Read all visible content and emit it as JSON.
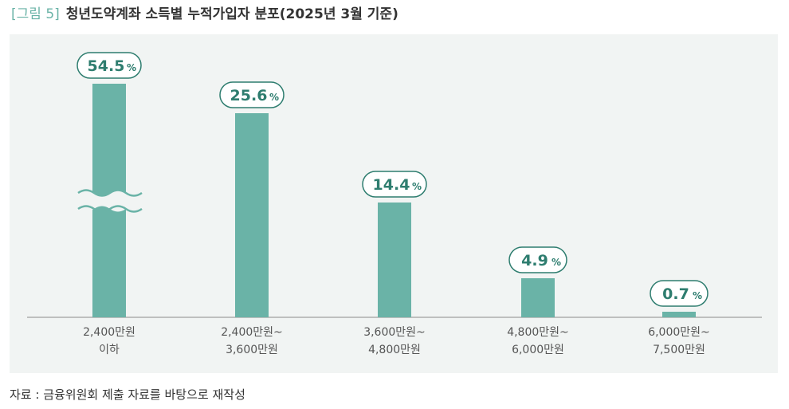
{
  "figure": {
    "label": "[그림 5]",
    "title": "청년도약계좌 소득별 누적가입자 분포(2025년 3월 기준)"
  },
  "source": "자료 : 금융위원회 제출 자료를 바탕으로 재작성",
  "colors": {
    "bar": "#6ab3a7",
    "accent": "#2e7d6f",
    "panel": "#f1f4f3",
    "axis": "#8a8a8a"
  },
  "chart_data": {
    "type": "bar",
    "categories": [
      [
        "2,400만원",
        "이하"
      ],
      [
        "2,400만원~",
        "3,600만원"
      ],
      [
        "3,600만원~",
        "4,800만원"
      ],
      [
        "4,800만원~",
        "6,000만원"
      ],
      [
        "6,000만원~",
        "7,500만원"
      ]
    ],
    "values": [
      54.5,
      25.6,
      14.4,
      4.9,
      0.7
    ],
    "value_labels": [
      "54.5",
      "25.6",
      "14.4",
      "4.9",
      "0.7"
    ],
    "unit": "%",
    "axis_break_on_first_bar": true,
    "grid": false,
    "legend": "none"
  }
}
